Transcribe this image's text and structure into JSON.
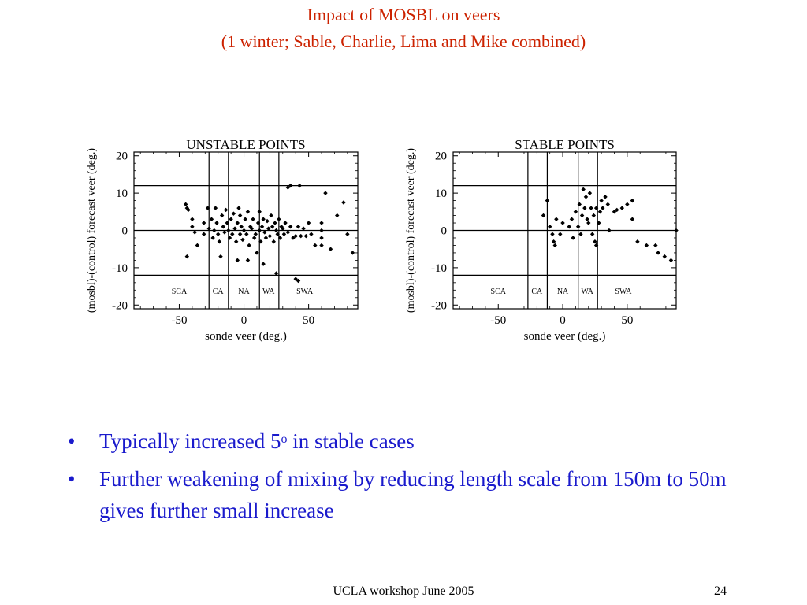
{
  "slide": {
    "title_line1": "Impact of MOSBL on veers",
    "title_line2": "(1 winter; Sable, Charlie, Lima and Mike combined)",
    "bullets": [
      {
        "before": "Typically increased 5",
        "sup": "o",
        "after": " in stable cases"
      },
      {
        "text": "Further weakening of mixing by reducing length scale from 150m to 50m gives further small increase"
      }
    ],
    "bullet_char": "•",
    "footer": "UCLA workshop June 2005",
    "page_number": "24"
  },
  "chart_data": [
    {
      "type": "scatter",
      "title": "UNSTABLE POINTS",
      "xlabel": "sonde veer  (deg.)",
      "ylabel": "(mosbl)-(control) forecast veer  (deg.)",
      "xlim": [
        -85,
        88
      ],
      "ylim": [
        -21,
        21
      ],
      "x_ticks": [
        -50,
        0,
        50
      ],
      "y_ticks": [
        -20,
        -10,
        0,
        10,
        20
      ],
      "vertical_lines": [
        -27,
        -12,
        12,
        27
      ],
      "horizontal_lines": [
        -12,
        0,
        12
      ],
      "regions": [
        {
          "label": "SCA",
          "x": -50
        },
        {
          "label": "CA",
          "x": -20
        },
        {
          "label": "NA",
          "x": 0
        },
        {
          "label": "WA",
          "x": 19
        },
        {
          "label": "SWA",
          "x": 47
        }
      ],
      "points": [
        [
          -45,
          7
        ],
        [
          -44,
          6
        ],
        [
          -43,
          5.5
        ],
        [
          -40,
          3
        ],
        [
          -40,
          1
        ],
        [
          -38,
          -0.5
        ],
        [
          -36,
          -4
        ],
        [
          -44,
          -7
        ],
        [
          -31,
          2
        ],
        [
          -31,
          -1
        ],
        [
          -28,
          6
        ],
        [
          -27,
          0.5
        ],
        [
          -25,
          3
        ],
        [
          -24,
          -2
        ],
        [
          -23,
          0
        ],
        [
          -22,
          6
        ],
        [
          -21,
          2
        ],
        [
          -20,
          -1
        ],
        [
          -19,
          -3
        ],
        [
          -18,
          -7
        ],
        [
          -17,
          4
        ],
        [
          -16,
          1
        ],
        [
          -15,
          -0.5
        ],
        [
          -14,
          5.5
        ],
        [
          -13,
          2
        ],
        [
          -12,
          0
        ],
        [
          -11,
          -2
        ],
        [
          -10,
          3
        ],
        [
          -9,
          -1
        ],
        [
          -8,
          4.5
        ],
        [
          -7,
          0.5
        ],
        [
          -6,
          -3
        ],
        [
          -5,
          2
        ],
        [
          -4,
          6
        ],
        [
          -3,
          -1
        ],
        [
          -3,
          4
        ],
        [
          -2,
          1
        ],
        [
          -1,
          -2.5
        ],
        [
          0,
          0
        ],
        [
          1,
          3
        ],
        [
          2,
          -1
        ],
        [
          3,
          5
        ],
        [
          4,
          -4
        ],
        [
          5,
          1
        ],
        [
          6,
          0.5
        ],
        [
          7,
          3
        ],
        [
          8,
          -2
        ],
        [
          9,
          -1
        ],
        [
          10,
          -6
        ],
        [
          11,
          2
        ],
        [
          12,
          0
        ],
        [
          12,
          5
        ],
        [
          13,
          -3
        ],
        [
          14,
          1
        ],
        [
          15,
          3
        ],
        [
          16,
          -0.5
        ],
        [
          17,
          -2
        ],
        [
          18,
          2.5
        ],
        [
          19,
          0.5
        ],
        [
          20,
          -1.5
        ],
        [
          21,
          4
        ],
        [
          22,
          1
        ],
        [
          23,
          -3
        ],
        [
          24,
          2
        ],
        [
          25,
          0
        ],
        [
          26,
          -1
        ],
        [
          27,
          3
        ],
        [
          28,
          -2
        ],
        [
          29,
          1
        ],
        [
          30,
          0.5
        ],
        [
          31,
          -1
        ],
        [
          32,
          2
        ],
        [
          34,
          -0.5
        ],
        [
          36,
          1
        ],
        [
          38,
          -2
        ],
        [
          40,
          -1.5
        ],
        [
          42,
          1
        ],
        [
          44,
          -1.5
        ],
        [
          46,
          0.5
        ],
        [
          48,
          -1.5
        ],
        [
          50,
          2
        ],
        [
          52,
          -1
        ],
        [
          55,
          -4
        ],
        [
          -5,
          -8
        ],
        [
          15,
          -9
        ],
        [
          25,
          -11.5
        ],
        [
          40,
          -13
        ],
        [
          42,
          -13.5
        ],
        [
          34,
          11.5
        ],
        [
          36,
          12
        ],
        [
          43,
          12
        ],
        [
          60,
          2
        ],
        [
          60,
          0
        ],
        [
          60,
          -2
        ],
        [
          60,
          -4
        ],
        [
          63,
          10
        ],
        [
          67,
          -5
        ],
        [
          72,
          4
        ],
        [
          77,
          7.5
        ],
        [
          80,
          -1
        ],
        [
          84,
          -6
        ],
        [
          3,
          -8
        ]
      ]
    },
    {
      "type": "scatter",
      "title": "STABLE POINTS",
      "xlabel": "sonde veer  (deg.)",
      "ylabel": "(mosbl)-(control) forecast veer  (deg.)",
      "xlim": [
        -85,
        88
      ],
      "ylim": [
        -21,
        21
      ],
      "x_ticks": [
        -50,
        0,
        50
      ],
      "y_ticks": [
        -20,
        -10,
        0,
        10,
        20
      ],
      "vertical_lines": [
        -27,
        -12,
        12,
        27
      ],
      "horizontal_lines": [
        -12,
        0,
        12
      ],
      "regions": [
        {
          "label": "SCA",
          "x": -50
        },
        {
          "label": "CA",
          "x": -20
        },
        {
          "label": "NA",
          "x": 0
        },
        {
          "label": "WA",
          "x": 19
        },
        {
          "label": "SWA",
          "x": 47
        }
      ],
      "points": [
        [
          -15,
          4
        ],
        [
          -12,
          8
        ],
        [
          -10,
          1
        ],
        [
          -8,
          -1
        ],
        [
          -7,
          -3
        ],
        [
          -6,
          -4
        ],
        [
          -5,
          3
        ],
        [
          0,
          2
        ],
        [
          -2,
          -1
        ],
        [
          5,
          1
        ],
        [
          7,
          3
        ],
        [
          8,
          -2
        ],
        [
          10,
          5
        ],
        [
          12,
          1
        ],
        [
          13,
          7
        ],
        [
          14,
          -1
        ],
        [
          15,
          4
        ],
        [
          16,
          11
        ],
        [
          17,
          6
        ],
        [
          18,
          9
        ],
        [
          19,
          3
        ],
        [
          20,
          2
        ],
        [
          21,
          10
        ],
        [
          22,
          6
        ],
        [
          23,
          -1
        ],
        [
          24,
          4
        ],
        [
          25,
          -3
        ],
        [
          26,
          -4
        ],
        [
          26,
          6
        ],
        [
          28,
          2
        ],
        [
          29,
          5
        ],
        [
          30,
          8
        ],
        [
          31,
          6
        ],
        [
          33,
          9
        ],
        [
          35,
          7
        ],
        [
          36,
          0
        ],
        [
          40,
          5
        ],
        [
          42,
          5.5
        ],
        [
          46,
          6
        ],
        [
          50,
          7
        ],
        [
          54,
          8
        ],
        [
          54,
          3
        ],
        [
          58,
          -3
        ],
        [
          65,
          -4
        ],
        [
          72,
          -4
        ],
        [
          74,
          -6
        ],
        [
          79,
          -7
        ],
        [
          84,
          -8
        ],
        [
          88,
          0
        ]
      ]
    }
  ]
}
